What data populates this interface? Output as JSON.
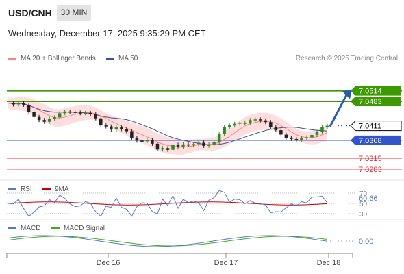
{
  "header": {
    "symbol": "USD/CNH",
    "timeframe": "30 MIN",
    "datetime": "Wednesday, December 17, 2025 9:35:29 PM CET"
  },
  "main_panel": {
    "legend": [
      {
        "label": "MA 20 + Bollinger Bands",
        "color": "#ff8080"
      },
      {
        "label": "MA 50",
        "color": "#335599"
      }
    ],
    "copyright": "Research © 2025 Trading Central"
  },
  "rsi_panel": {
    "legend": [
      {
        "label": "RSI",
        "color": "#5577cc"
      },
      {
        "label": "9MA",
        "color": "#cc0000"
      }
    ],
    "level_labels": [
      "70",
      "50",
      "30"
    ],
    "current_label": "60.66"
  },
  "macd_panel": {
    "legend": [
      {
        "label": "MACD",
        "color": "#5577cc"
      },
      {
        "label": "MACD Signal",
        "color": "#44aa22"
      }
    ],
    "zero_label": "0.00"
  },
  "x_axis": {
    "ticks": [
      "Dec 16",
      "Dec 17",
      "Dec 18"
    ]
  },
  "colors": {
    "resistance": "#3c9a00",
    "support": "#3355cc",
    "red_level": "#ff7070",
    "bollinger_fill": "#ffdede",
    "ma20": "#ff8080",
    "ma50": "#335599",
    "candle_up": "#2a8a2a",
    "candle_down": "#222222",
    "arrow": "#2a5bab",
    "current_box": "#000000"
  },
  "chart_data": {
    "type": "candlestick",
    "instrument": "USD/CNH",
    "interval": "30 MIN",
    "x_ticks": [
      "Dec 16",
      "Dec 17",
      "Dec 18"
    ],
    "levels": [
      {
        "price": 7.0514,
        "kind": "resistance"
      },
      {
        "price": 7.0483,
        "kind": "resistance"
      },
      {
        "price": 7.0411,
        "kind": "current"
      },
      {
        "price": 7.0368,
        "kind": "pivot"
      },
      {
        "price": 7.0315,
        "kind": "support"
      },
      {
        "price": 7.0283,
        "kind": "support"
      }
    ],
    "price_path": [
      7.0478,
      7.0474,
      7.0479,
      7.0473,
      7.0452,
      7.0437,
      7.0428,
      7.0423,
      7.0432,
      7.0436,
      7.0448,
      7.0453,
      7.0452,
      7.045,
      7.0448,
      7.0449,
      7.0446,
      7.0433,
      7.0412,
      7.0409,
      7.04,
      7.0406,
      7.0401,
      7.0395,
      7.0375,
      7.0367,
      7.0366,
      7.0368,
      7.0358,
      7.0341,
      7.0345,
      7.034,
      7.0355,
      7.035,
      7.0356,
      7.0354,
      7.0357,
      7.0361,
      7.0352,
      7.0356,
      7.0362,
      7.0387,
      7.0408,
      7.0412,
      7.0417,
      7.042,
      7.042,
      7.0428,
      7.043,
      7.0427,
      7.0422,
      7.0408,
      7.0398,
      7.0385,
      7.0375,
      7.0372,
      7.037,
      7.0376,
      7.0377,
      7.0384,
      7.0393,
      7.0407,
      7.0411
    ],
    "projection": {
      "from": 7.0411,
      "to": 7.0514
    },
    "rsi": {
      "levels": [
        70,
        50,
        30
      ],
      "current": 60.66
    },
    "macd": {
      "zero": 0.0
    }
  }
}
